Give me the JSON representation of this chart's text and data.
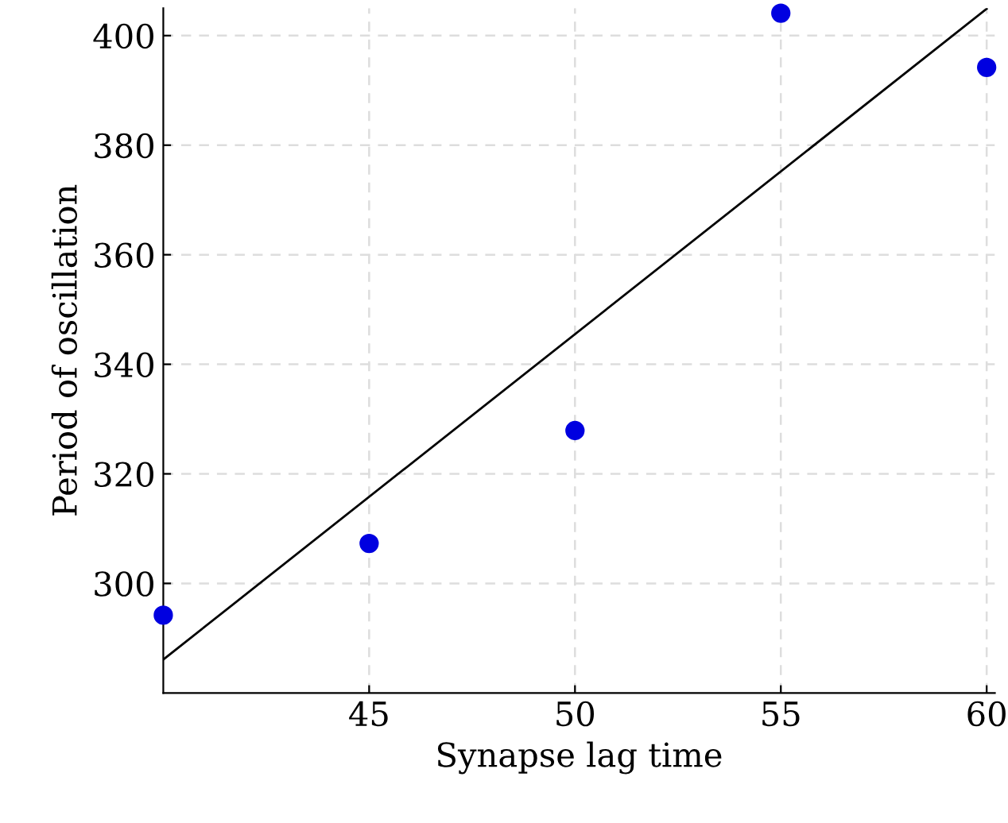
{
  "chart_data": {
    "type": "scatter",
    "xlabel": "Synapse lag time",
    "ylabel": "Period of oscillation",
    "xlim": [
      40,
      60.2
    ],
    "ylim": [
      280,
      405
    ],
    "xticks": [
      45,
      50,
      55,
      60
    ],
    "yticks": [
      300,
      320,
      340,
      360,
      380,
      400
    ],
    "grid": true,
    "marker": "circle",
    "series": [
      {
        "color": "#0000e0",
        "x": [
          40,
          45,
          50,
          55,
          60
        ],
        "values": [
          294.2,
          307.3,
          327.9,
          404.1,
          394.2
        ]
      },
      {
        "type": "line",
        "color": "#000000",
        "x": [
          40,
          60
        ],
        "values": [
          286.1,
          404.9
        ],
        "marker": "none",
        "line_style": "solid"
      }
    ]
  }
}
